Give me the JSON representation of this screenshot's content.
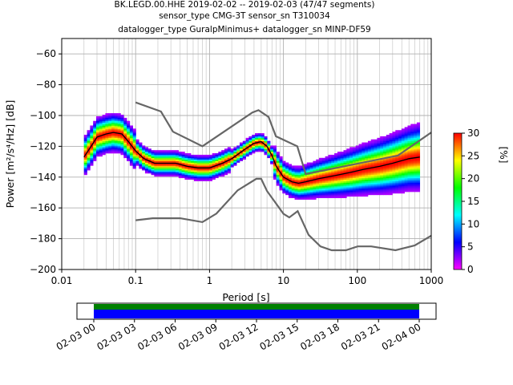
{
  "chart_data": {
    "type": "heatmap",
    "title_lines": [
      "BK.LEGD.00.HHE   2019-02-02 -- 2019-02-03  (47/47 segments)",
      "sensor_type CMG-3T sensor_sn T310034",
      "datalogger_type GuralpMinimus+ datalogger_sn MINP-DF59"
    ],
    "xlabel": "Period [s]",
    "ylabel": "Power [m²/s⁴/Hz] [dB]",
    "xscale": "log",
    "xlim": [
      0.01,
      1000
    ],
    "ylim": [
      -200,
      -50
    ],
    "x_ticks": [
      {
        "value": 0.01,
        "label": "0.01"
      },
      {
        "value": 0.1,
        "label": "0.1"
      },
      {
        "value": 1,
        "label": "1"
      },
      {
        "value": 10,
        "label": "10"
      },
      {
        "value": 100,
        "label": "100"
      },
      {
        "value": 1000,
        "label": "1000"
      }
    ],
    "y_ticks": [
      {
        "value": -60,
        "label": "−60"
      },
      {
        "value": -80,
        "label": "−80"
      },
      {
        "value": -100,
        "label": "−100"
      },
      {
        "value": -120,
        "label": "−120"
      },
      {
        "value": -140,
        "label": "−140"
      },
      {
        "value": -160,
        "label": "−160"
      },
      {
        "value": -180,
        "label": "−180"
      },
      {
        "value": -200,
        "label": "−200"
      }
    ],
    "grid": true,
    "noise_models": [
      {
        "id": "nhnm",
        "color": "#666666",
        "points": [
          [
            0.1,
            -91.5
          ],
          [
            0.22,
            -97.4
          ],
          [
            0.32,
            -110.5
          ],
          [
            0.8,
            -120
          ],
          [
            3.8,
            -98
          ],
          [
            4.6,
            -96.5
          ],
          [
            6.3,
            -101
          ],
          [
            7.9,
            -113.5
          ],
          [
            15.4,
            -120
          ],
          [
            20,
            -138
          ],
          [
            354,
            -126
          ],
          [
            1000,
            -111
          ]
        ]
      },
      {
        "id": "nlnm",
        "color": "#666666",
        "points": [
          [
            0.1,
            -168
          ],
          [
            0.17,
            -166.7
          ],
          [
            0.4,
            -166.7
          ],
          [
            0.8,
            -169.2
          ],
          [
            1.24,
            -163.7
          ],
          [
            2.4,
            -148.6
          ],
          [
            4.3,
            -141.1
          ],
          [
            5,
            -141.1
          ],
          [
            6,
            -149
          ],
          [
            10,
            -163.8
          ],
          [
            12,
            -166.2
          ],
          [
            15.6,
            -162.1
          ],
          [
            21.9,
            -177.5
          ],
          [
            31.6,
            -185
          ],
          [
            45,
            -187.5
          ],
          [
            70,
            -187.5
          ],
          [
            101,
            -185
          ],
          [
            154,
            -185
          ],
          [
            328,
            -187.5
          ],
          [
            600,
            -184.4
          ],
          [
            1000,
            -178
          ]
        ]
      }
    ],
    "mean_curve": {
      "color": "#000000",
      "points": [
        [
          0.02,
          -127
        ],
        [
          0.025,
          -120
        ],
        [
          0.03,
          -114
        ],
        [
          0.04,
          -112
        ],
        [
          0.05,
          -111
        ],
        [
          0.065,
          -112
        ],
        [
          0.08,
          -117
        ],
        [
          0.1,
          -123
        ],
        [
          0.13,
          -128
        ],
        [
          0.18,
          -131
        ],
        [
          0.25,
          -131
        ],
        [
          0.35,
          -131
        ],
        [
          0.5,
          -133
        ],
        [
          0.7,
          -134
        ],
        [
          1,
          -134
        ],
        [
          1.5,
          -131
        ],
        [
          2,
          -128
        ],
        [
          3,
          -122
        ],
        [
          4,
          -118
        ],
        [
          5,
          -117
        ],
        [
          6,
          -120
        ],
        [
          7,
          -126
        ],
        [
          8,
          -133
        ],
        [
          10,
          -140
        ],
        [
          13,
          -143
        ],
        [
          16,
          -144
        ],
        [
          20,
          -143
        ],
        [
          30,
          -141
        ],
        [
          50,
          -139
        ],
        [
          80,
          -137
        ],
        [
          120,
          -135
        ],
        [
          200,
          -133
        ],
        [
          300,
          -131
        ],
        [
          500,
          -128
        ],
        [
          700,
          -127
        ]
      ]
    },
    "colorbar": {
      "label": "[%]",
      "range": [
        0,
        30
      ],
      "ticks": [
        "0",
        "5",
        "10",
        "15",
        "20",
        "25",
        "30"
      ],
      "stops": [
        "#ff00ff",
        "#0000ff",
        "#00ffff",
        "#00ff00",
        "#ffff00",
        "#ff0000"
      ]
    },
    "timeline": {
      "fill_colors": [
        "#008000",
        "#0000ff"
      ],
      "tick_labels": [
        "02-03 00",
        "02-03 03",
        "02-03 06",
        "02-03 09",
        "02-03 12",
        "02-03 15",
        "02-03 18",
        "02-03 21",
        "02-04 00"
      ]
    }
  }
}
